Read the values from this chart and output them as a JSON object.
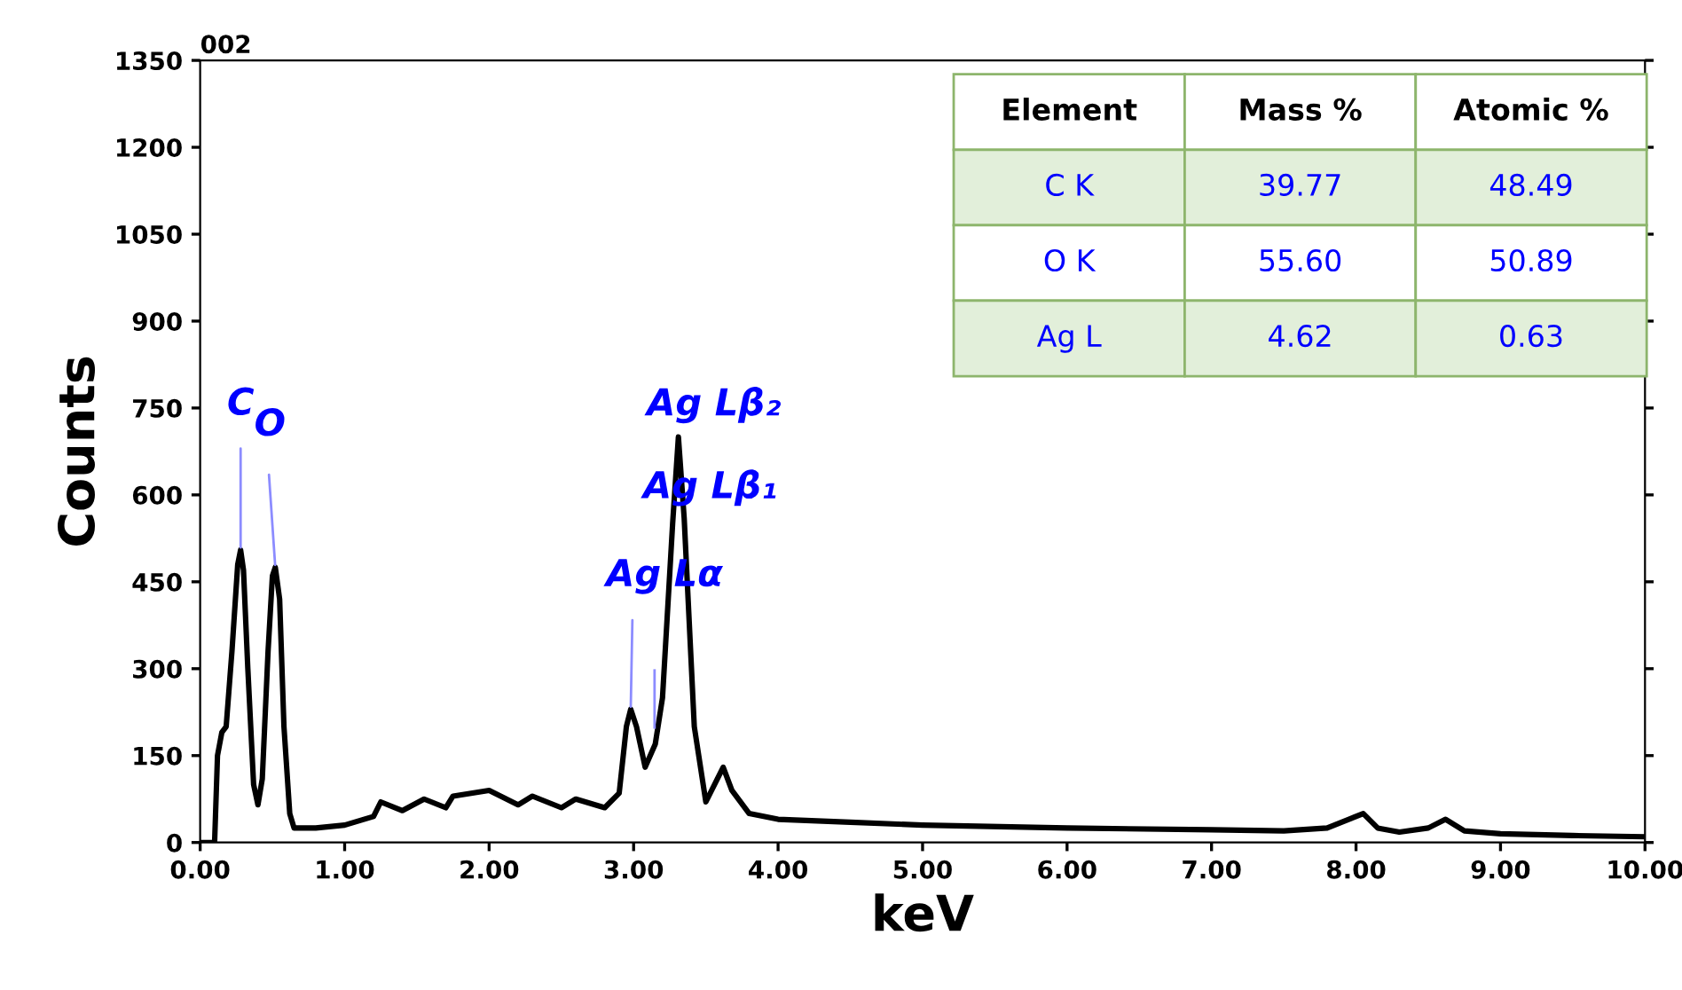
{
  "chart_data": [
    {
      "type": "line",
      "title": "002",
      "xlabel": "keV",
      "ylabel": "Counts",
      "series": [
        {
          "color": "#000000",
          "x": [
            0,
            0.1,
            0.12,
            0.15,
            0.18,
            0.22,
            0.26,
            0.28,
            0.3,
            0.33,
            0.37,
            0.4,
            0.43,
            0.47,
            0.5,
            0.52,
            0.55,
            0.58,
            0.62,
            0.65,
            0.8,
            1.0,
            1.2,
            1.25,
            1.4,
            1.55,
            1.7,
            1.75,
            2.0,
            2.2,
            2.3,
            2.5,
            2.6,
            2.8,
            2.9,
            2.95,
            2.98,
            3.02,
            3.08,
            3.15,
            3.2,
            3.27,
            3.31,
            3.35,
            3.42,
            3.5,
            3.58,
            3.62,
            3.68,
            3.8,
            4.0,
            4.5,
            5.0,
            6.0,
            7.0,
            7.5,
            7.8,
            7.95,
            8.05,
            8.15,
            8.3,
            8.5,
            8.62,
            8.75,
            9.0,
            9.5,
            10.0
          ],
          "values": [
            0,
            0,
            150,
            190,
            200,
            330,
            480,
            505,
            470,
            300,
            100,
            65,
            110,
            330,
            460,
            475,
            420,
            200,
            50,
            25,
            25,
            30,
            45,
            70,
            55,
            75,
            60,
            80,
            90,
            65,
            80,
            60,
            75,
            60,
            85,
            200,
            230,
            200,
            130,
            170,
            250,
            550,
            700,
            560,
            200,
            70,
            110,
            130,
            90,
            50,
            40,
            35,
            30,
            25,
            22,
            20,
            25,
            40,
            50,
            25,
            18,
            25,
            40,
            20,
            15,
            12,
            10
          ]
        }
      ],
      "xlim": [
        0,
        10
      ],
      "ylim": [
        0,
        1350
      ],
      "xticks": [
        {
          "value": 0,
          "label": "0.00"
        },
        {
          "value": 1,
          "label": "1.00"
        },
        {
          "value": 2,
          "label": "2.00"
        },
        {
          "value": 3,
          "label": "3.00"
        },
        {
          "value": 4,
          "label": "4.00"
        },
        {
          "value": 5,
          "label": "5.00"
        },
        {
          "value": 6,
          "label": "6.00"
        },
        {
          "value": 7,
          "label": "7.00"
        },
        {
          "value": 8,
          "label": "8.00"
        },
        {
          "value": 9,
          "label": "9.00"
        },
        {
          "value": 10,
          "label": "10.00"
        }
      ],
      "yticks": [
        0,
        150,
        300,
        450,
        600,
        750,
        900,
        1050,
        1200,
        1350
      ],
      "annotations": [
        {
          "text": "C",
          "x": 0.28,
          "y": 505
        },
        {
          "text": "O",
          "x": 0.52,
          "y": 475
        },
        {
          "text": "Ag Lα",
          "x": 2.98,
          "y": 230
        },
        "Ag Lβ₁",
        {
          "text": "Ag Lβ₂",
          "x": 3.31,
          "y": 700
        }
      ],
      "grid": false,
      "legend": false
    },
    {
      "type": "other",
      "categories": [
        "Element",
        "Mass %",
        "Atomic %"
      ],
      "cell_labels": [
        [
          "C K",
          "39.77",
          "48.49"
        ],
        [
          "O K",
          "55.60",
          "50.89"
        ],
        [
          "Ag L",
          "4.62",
          "0.63"
        ]
      ],
      "colors": [
        "#e2efda",
        "#ffffff",
        "#e2efda"
      ]
    }
  ]
}
